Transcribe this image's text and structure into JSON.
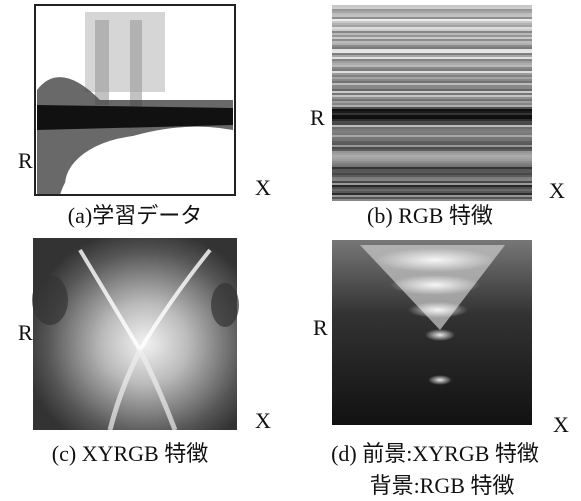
{
  "panels": [
    {
      "y_label": "R",
      "x_label": "X",
      "caption": "(a)学習データ"
    },
    {
      "y_label": "R",
      "x_label": "X",
      "caption": "(b) RGB 特徴"
    },
    {
      "y_label": "R",
      "x_label": "X",
      "caption": "(c) XYRGB 特徴"
    },
    {
      "y_label": "R",
      "x_label": "X",
      "caption": [
        "(d) 前景:XYRGB 特徴",
        "背景:RGB 特徴"
      ]
    }
  ]
}
